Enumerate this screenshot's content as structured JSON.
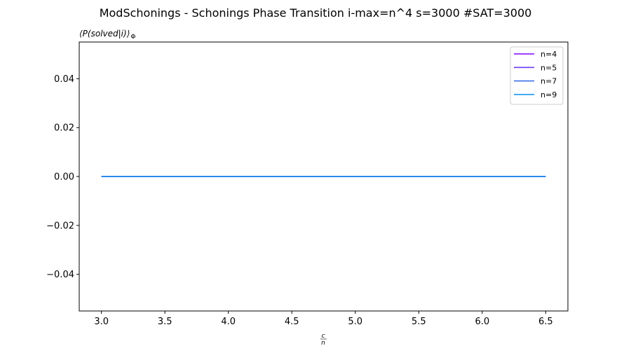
{
  "chart_data": {
    "type": "line",
    "title": "ModSchonings - Schonings Phase Transition  i-max=n^4 s=3000 #SAT=3000",
    "ylabel": "⟨P(solved|i)⟩",
    "ylabel_subscript": "Φ",
    "xlabel_numerator": "c",
    "xlabel_denominator": "n",
    "xlim": [
      2.825,
      6.675
    ],
    "ylim": [
      -0.055,
      0.055
    ],
    "xticks": [
      3.0,
      3.5,
      4.0,
      4.5,
      5.0,
      5.5,
      6.0,
      6.5
    ],
    "xtick_labels": [
      "3.0",
      "3.5",
      "4.0",
      "4.5",
      "5.0",
      "5.5",
      "6.0",
      "6.5"
    ],
    "yticks": [
      0.04,
      0.02,
      0.0,
      -0.02,
      -0.04
    ],
    "ytick_labels": [
      "0.04",
      "0.02",
      "0.00",
      "−0.02",
      "−0.04"
    ],
    "grid": false,
    "legend_position": "top-right",
    "series": [
      {
        "name": "n=4",
        "color": "#8000ff",
        "x": [
          3.0,
          6.5
        ],
        "y": [
          0.0,
          0.0
        ]
      },
      {
        "name": "n=5",
        "color": "#6a3cf6",
        "x": [
          3.0,
          6.5
        ],
        "y": [
          0.0,
          0.0
        ]
      },
      {
        "name": "n=7",
        "color": "#3b6fe6",
        "x": [
          3.0,
          6.5
        ],
        "y": [
          0.0,
          0.0
        ]
      },
      {
        "name": "n=9",
        "color": "#1996f3",
        "x": [
          3.0,
          6.5
        ],
        "y": [
          0.0,
          0.0
        ]
      }
    ]
  }
}
